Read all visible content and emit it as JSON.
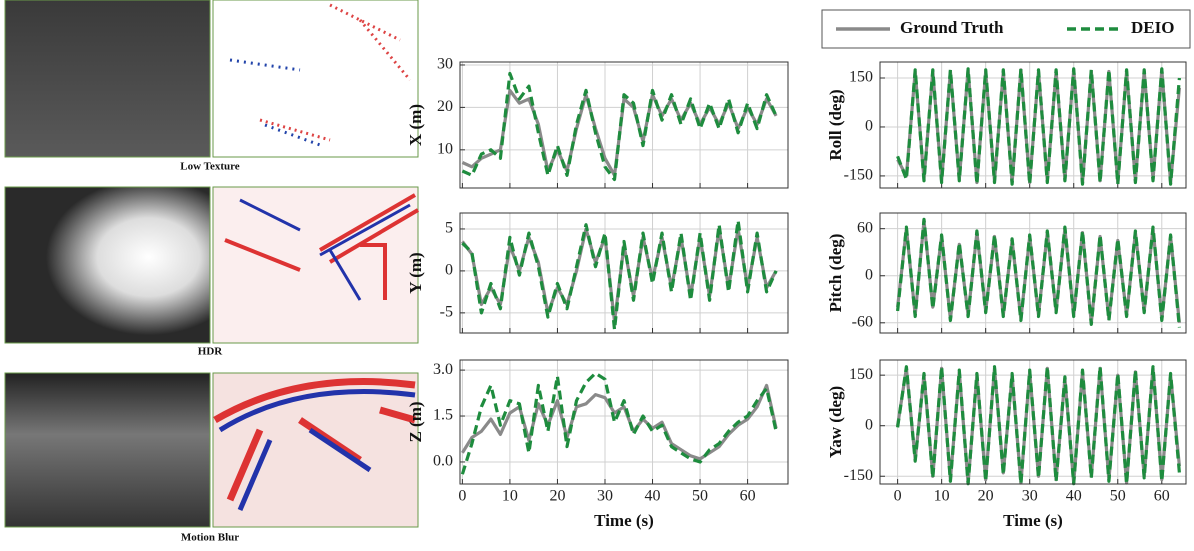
{
  "panels": [
    {
      "caption": "Low Texture"
    },
    {
      "caption": "HDR"
    },
    {
      "caption": "Motion Blur"
    }
  ],
  "chart_data": [
    {
      "type": "line",
      "ylabel": "X (m)",
      "xlim": [
        -0.5,
        68.5
      ],
      "ylim": [
        1,
        30.7
      ],
      "xticks": [
        0,
        10,
        20,
        30,
        40,
        50,
        60
      ],
      "yticks": [
        10,
        20,
        30
      ],
      "grid": true,
      "x": [
        0,
        2,
        4,
        6,
        8,
        10,
        12,
        14,
        16,
        18,
        20,
        22,
        24,
        26,
        28,
        30,
        32,
        34,
        36,
        38,
        40,
        42,
        44,
        46,
        48,
        50,
        52,
        54,
        56,
        58,
        60,
        62,
        64,
        66
      ],
      "series": [
        {
          "name": "Ground Truth",
          "color": "#8a8a8a",
          "values": [
            7,
            6,
            8,
            9,
            10,
            24,
            21,
            22,
            16,
            5,
            10,
            5,
            15,
            23,
            15,
            8,
            4,
            22,
            20,
            12,
            23,
            18,
            22,
            17,
            21,
            16,
            20,
            16,
            21,
            15,
            20,
            16,
            22,
            18
          ]
        },
        {
          "name": "DEIO",
          "color": "#1e8c3e",
          "values": [
            5,
            4,
            9,
            10,
            8,
            28,
            22,
            25,
            14,
            4,
            11,
            4,
            16,
            24,
            14,
            6,
            3,
            23,
            21,
            11,
            24,
            17,
            23,
            16,
            22,
            15,
            21,
            15,
            22,
            14,
            21,
            15,
            23,
            18
          ]
        }
      ]
    },
    {
      "type": "line",
      "ylabel": "Y (m)",
      "xlim": [
        -0.5,
        68.5
      ],
      "ylim": [
        -7.4,
        6.9
      ],
      "xticks": [
        0,
        10,
        20,
        30,
        40,
        50,
        60
      ],
      "yticks": [
        -5,
        0,
        5
      ],
      "grid": true,
      "x": [
        0,
        2,
        4,
        6,
        8,
        10,
        12,
        14,
        16,
        18,
        20,
        22,
        24,
        26,
        28,
        30,
        32,
        34,
        36,
        38,
        40,
        42,
        44,
        46,
        48,
        50,
        52,
        54,
        56,
        58,
        60,
        62,
        64,
        66
      ],
      "series": [
        {
          "name": "Ground Truth",
          "color": "#8a8a8a",
          "values": [
            3.5,
            2,
            -4,
            -2,
            -4,
            3,
            0,
            4,
            1,
            -5,
            -2,
            -4,
            0,
            5,
            1,
            4,
            -6,
            3,
            -3,
            4,
            -1,
            4,
            -2,
            4,
            -3,
            4,
            -3,
            5,
            -2,
            5,
            -2,
            4,
            -2,
            0
          ]
        },
        {
          "name": "DEIO",
          "color": "#1e8c3e",
          "values": [
            3.3,
            2.2,
            -5,
            -1.5,
            -4.5,
            4,
            -0.5,
            4.5,
            0.5,
            -5.5,
            -1.5,
            -4.5,
            0.5,
            5.5,
            0.5,
            4.5,
            -7,
            3.5,
            -3.5,
            4.5,
            -1.5,
            4.5,
            -2.5,
            4.5,
            -3.5,
            4.5,
            -3.5,
            5.5,
            -2.5,
            6,
            -2.5,
            4.5,
            -2.5,
            0
          ]
        }
      ]
    },
    {
      "type": "line",
      "ylabel": "Z (m)",
      "xlabel": "Time (s)",
      "xlim": [
        -0.5,
        68.5
      ],
      "ylim": [
        -0.72,
        3.33
      ],
      "xticks": [
        0,
        10,
        20,
        30,
        40,
        50,
        60
      ],
      "yticks": [
        {
          "value": 0,
          "label": "0.0"
        },
        1.5,
        {
          "value": 3,
          "label": "3.0"
        }
      ],
      "grid": true,
      "x": [
        0,
        2,
        4,
        6,
        8,
        10,
        12,
        14,
        16,
        18,
        20,
        22,
        24,
        26,
        28,
        30,
        32,
        34,
        36,
        38,
        40,
        42,
        44,
        46,
        48,
        50,
        52,
        54,
        56,
        58,
        60,
        62,
        64,
        66
      ],
      "series": [
        {
          "name": "Ground Truth",
          "color": "#8a8a8a",
          "values": [
            0.3,
            0.8,
            1.0,
            1.4,
            0.9,
            1.6,
            1.8,
            0.7,
            1.9,
            1.2,
            2.0,
            0.8,
            1.8,
            1.9,
            2.2,
            2.1,
            1.6,
            1.8,
            1.0,
            1.4,
            1.1,
            1.3,
            0.6,
            0.4,
            0.2,
            0.1,
            0.3,
            0.5,
            0.9,
            1.2,
            1.4,
            1.8,
            2.5,
            1.1
          ]
        },
        {
          "name": "DEIO",
          "color": "#1e8c3e",
          "values": [
            -0.4,
            0.6,
            1.8,
            2.5,
            1.2,
            2.0,
            1.9,
            0.3,
            2.5,
            1.0,
            2.8,
            0.5,
            2.0,
            2.6,
            2.9,
            2.7,
            1.3,
            2.0,
            0.9,
            1.5,
            1.0,
            1.2,
            0.5,
            0.3,
            0.1,
            0.0,
            0.4,
            0.6,
            1.0,
            1.3,
            1.5,
            2.0,
            2.4,
            1.0
          ]
        }
      ]
    },
    {
      "type": "line",
      "ylabel": "Roll (deg)",
      "xlim": [
        -4,
        65.5
      ],
      "ylim": [
        -187,
        199
      ],
      "xticks": [
        0,
        10,
        20,
        30,
        40,
        50,
        60
      ],
      "yticks": [
        -150,
        0,
        150
      ],
      "grid": true,
      "x": [
        0,
        2,
        4,
        6,
        8,
        10,
        12,
        14,
        16,
        18,
        20,
        22,
        24,
        26,
        28,
        30,
        32,
        34,
        36,
        38,
        40,
        42,
        44,
        46,
        48,
        50,
        52,
        54,
        56,
        58,
        60,
        62,
        64
      ],
      "series": [
        {
          "name": "Ground Truth",
          "color": "#8a8a8a",
          "values": [
            -100,
            -150,
            170,
            -160,
            170,
            -165,
            170,
            -160,
            175,
            -170,
            170,
            -165,
            170,
            -170,
            175,
            -170,
            170,
            -165,
            170,
            -160,
            175,
            -170,
            170,
            -165,
            170,
            -170,
            170,
            -165,
            170,
            -160,
            175,
            -170,
            120
          ]
        },
        {
          "name": "DEIO",
          "color": "#1e8c3e",
          "values": [
            -90,
            -160,
            175,
            -165,
            175,
            -170,
            175,
            -165,
            178,
            -175,
            175,
            -170,
            175,
            -175,
            178,
            -175,
            175,
            -170,
            175,
            -165,
            178,
            -175,
            175,
            -170,
            175,
            -175,
            175,
            -170,
            175,
            -165,
            178,
            -175,
            150
          ]
        }
      ]
    },
    {
      "type": "line",
      "ylabel": "Pitch (deg)",
      "xlim": [
        -4,
        65.5
      ],
      "ylim": [
        -73,
        80
      ],
      "xticks": [
        0,
        10,
        20,
        30,
        40,
        50,
        60
      ],
      "yticks": [
        -60,
        0,
        60
      ],
      "grid": true,
      "x": [
        0,
        2,
        4,
        6,
        8,
        10,
        12,
        14,
        16,
        18,
        20,
        22,
        24,
        26,
        28,
        30,
        32,
        34,
        36,
        38,
        40,
        42,
        44,
        46,
        48,
        50,
        52,
        54,
        56,
        58,
        60,
        62,
        64
      ],
      "series": [
        {
          "name": "Ground Truth",
          "color": "#8a8a8a",
          "values": [
            -40,
            60,
            -50,
            70,
            -40,
            50,
            -55,
            40,
            -50,
            55,
            -45,
            50,
            -50,
            45,
            -55,
            50,
            -50,
            55,
            -45,
            60,
            -50,
            55,
            -60,
            50,
            -55,
            45,
            -50,
            55,
            -45,
            60,
            -55,
            50,
            -60
          ]
        },
        {
          "name": "DEIO",
          "color": "#1e8c3e",
          "values": [
            -45,
            62,
            -52,
            72,
            -42,
            52,
            -57,
            42,
            -52,
            57,
            -47,
            52,
            -52,
            47,
            -57,
            52,
            -52,
            57,
            -47,
            62,
            -52,
            57,
            -62,
            52,
            -57,
            47,
            -52,
            57,
            -47,
            62,
            -57,
            52,
            -66
          ]
        }
      ]
    },
    {
      "type": "line",
      "ylabel": "Yaw (deg)",
      "xlabel": "Time (s)",
      "xlim": [
        -4,
        65.5
      ],
      "ylim": [
        -173,
        195
      ],
      "xticks": [
        0,
        10,
        20,
        30,
        40,
        50,
        60
      ],
      "yticks": [
        -150,
        0,
        150
      ],
      "grid": true,
      "x": [
        0,
        2,
        4,
        6,
        8,
        10,
        12,
        14,
        16,
        18,
        20,
        22,
        24,
        26,
        28,
        30,
        32,
        34,
        36,
        38,
        40,
        42,
        44,
        46,
        48,
        50,
        52,
        54,
        56,
        58,
        60,
        62,
        64
      ],
      "series": [
        {
          "name": "Ground Truth",
          "color": "#8a8a8a",
          "values": [
            0,
            170,
            -100,
            150,
            -150,
            170,
            -160,
            160,
            -170,
            150,
            -160,
            170,
            -140,
            150,
            -170,
            160,
            -150,
            170,
            -160,
            140,
            -170,
            160,
            -150,
            170,
            -160,
            150,
            -170,
            160,
            -150,
            170,
            -160,
            150,
            -120
          ]
        },
        {
          "name": "DEIO",
          "color": "#1e8c3e",
          "values": [
            -5,
            175,
            -105,
            155,
            -155,
            175,
            -165,
            165,
            -172,
            155,
            -165,
            175,
            -145,
            155,
            -172,
            165,
            -155,
            175,
            -165,
            145,
            -172,
            165,
            -155,
            175,
            -165,
            155,
            -172,
            165,
            -155,
            175,
            -165,
            155,
            -140
          ]
        }
      ]
    }
  ]
}
